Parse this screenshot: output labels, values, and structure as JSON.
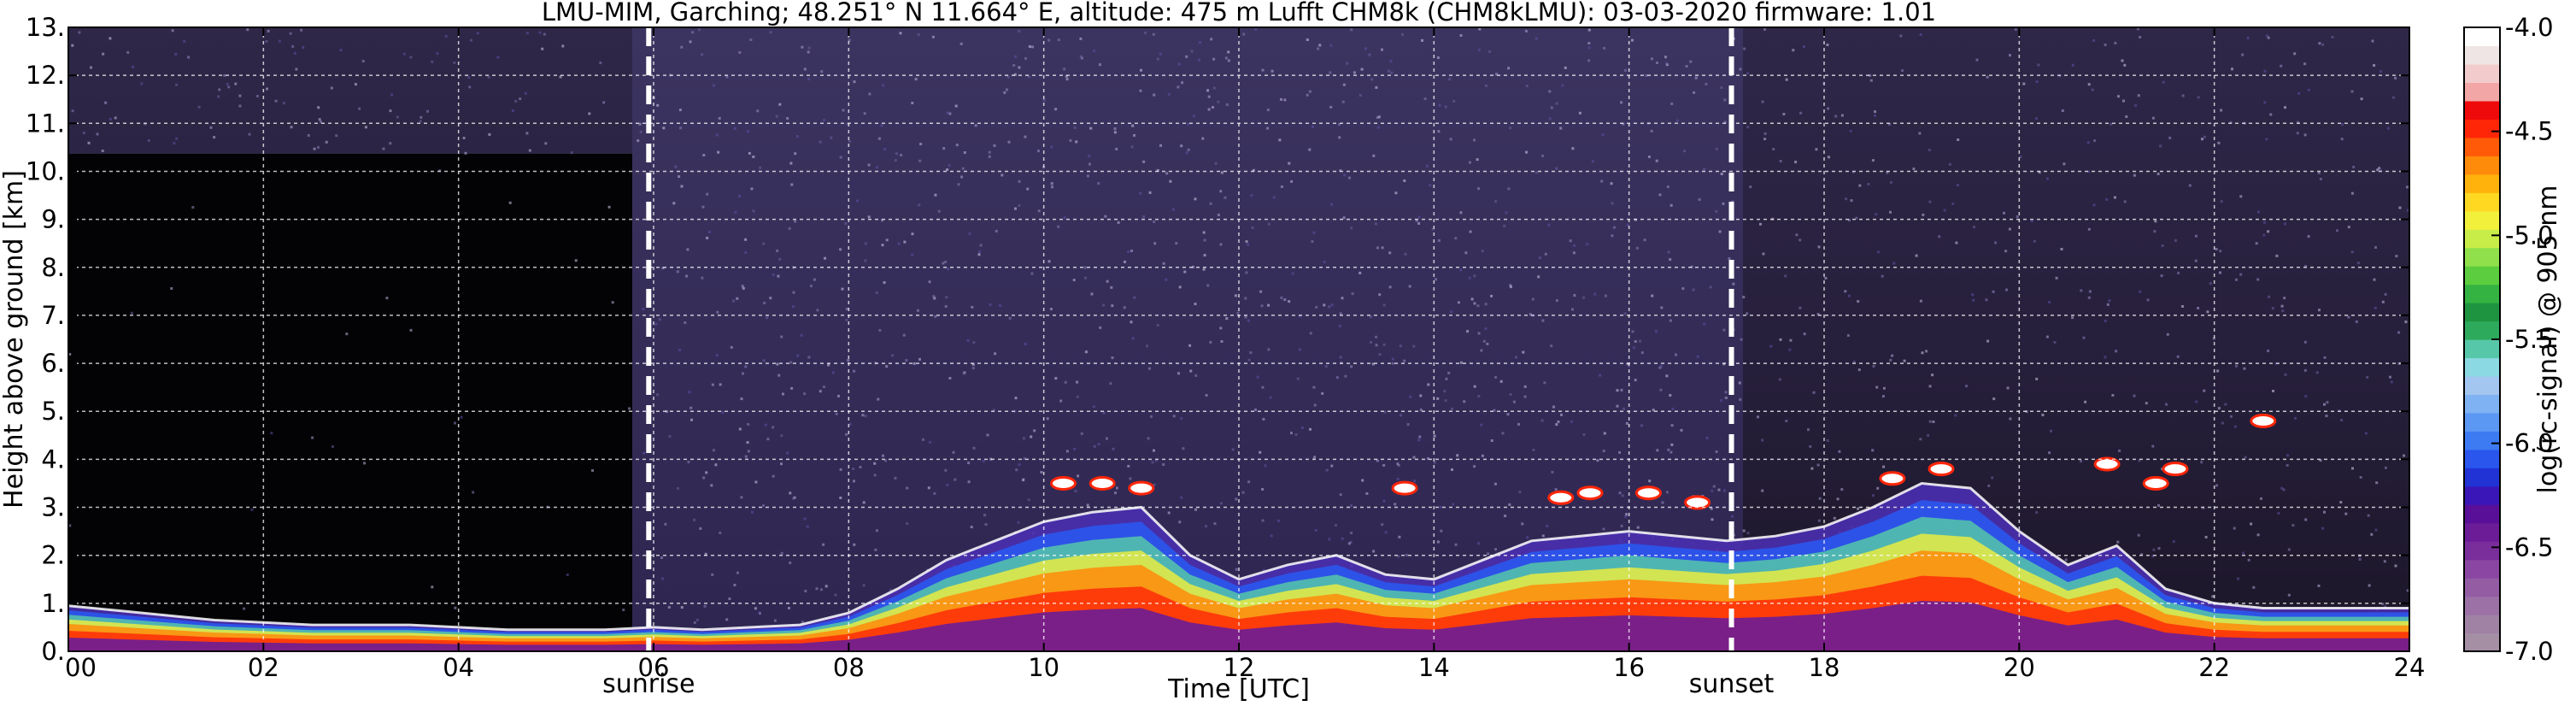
{
  "chart_data": {
    "type": "heatmap",
    "title": "LMU-MIM, Garching; 48.251° N 11.664° E, altitude: 475 m    Lufft CHM8k (CHM8kLMU): 03-03-2020    firmware: 1.01",
    "xlabel": "Time [UTC]",
    "ylabel": "Height above ground [km]",
    "colorbar_label": "log(rc-signal) @ 905 nm",
    "xlim": [
      0,
      24
    ],
    "ylim": [
      0,
      13
    ],
    "clim": [
      -7.0,
      -4.0
    ],
    "grid": true,
    "x_ticks": [
      {
        "value": 0,
        "label": "00"
      },
      {
        "value": 2,
        "label": "02"
      },
      {
        "value": 4,
        "label": "04"
      },
      {
        "value": 6,
        "label": "06"
      },
      {
        "value": 8,
        "label": "08"
      },
      {
        "value": 10,
        "label": "10"
      },
      {
        "value": 12,
        "label": "12"
      },
      {
        "value": 14,
        "label": "14"
      },
      {
        "value": 16,
        "label": "16"
      },
      {
        "value": 18,
        "label": "18"
      },
      {
        "value": 20,
        "label": "20"
      },
      {
        "value": 22,
        "label": "22"
      },
      {
        "value": 24,
        "label": "24"
      }
    ],
    "y_ticks": [
      {
        "value": 0,
        "label": "0."
      },
      {
        "value": 1,
        "label": "1."
      },
      {
        "value": 2,
        "label": "2."
      },
      {
        "value": 3,
        "label": "3."
      },
      {
        "value": 4,
        "label": "4."
      },
      {
        "value": 5,
        "label": "5."
      },
      {
        "value": 6,
        "label": "6."
      },
      {
        "value": 7,
        "label": "7."
      },
      {
        "value": 8,
        "label": "8."
      },
      {
        "value": 9,
        "label": "9."
      },
      {
        "value": 10,
        "label": "10."
      },
      {
        "value": 11,
        "label": "11."
      },
      {
        "value": 12,
        "label": "12."
      },
      {
        "value": 13,
        "label": "13."
      }
    ],
    "colorbar_ticks": [
      {
        "value": -4.0,
        "label": "-4.0"
      },
      {
        "value": -4.5,
        "label": "-4.5"
      },
      {
        "value": -5.0,
        "label": "-5.0"
      },
      {
        "value": -5.5,
        "label": "-5.5"
      },
      {
        "value": -6.0,
        "label": "-6.0"
      },
      {
        "value": -6.5,
        "label": "-6.5"
      },
      {
        "value": -7.0,
        "label": "-7.0"
      }
    ],
    "colorbar_colors": [
      "#a58fa5",
      "#a082a5",
      "#9b71a6",
      "#935ca3",
      "#8a46a2",
      "#7a2e9c",
      "#6b1c96",
      "#5a0f98",
      "#3a16b8",
      "#2233d6",
      "#2a56ee",
      "#3d7bf2",
      "#5b98f3",
      "#7fb2f2",
      "#a3c6f0",
      "#8bd9e2",
      "#56c7a8",
      "#2daa5c",
      "#1f9440",
      "#34b342",
      "#5ccd3e",
      "#8fe04a",
      "#c8ed48",
      "#f2f03a",
      "#ffd822",
      "#ffb20c",
      "#ff8b0a",
      "#ff5a08",
      "#ff2608",
      "#ee0a0a",
      "#f3a6a6",
      "#f2cccc",
      "#efe5e5",
      "#ffffff"
    ],
    "annotations": [
      {
        "x": 5.95,
        "label": "sunrise"
      },
      {
        "x": 17.05,
        "label": "sunset"
      }
    ],
    "series": [
      {
        "name": "mixing-layer signal top",
        "x": [
          0,
          0.5,
          1,
          1.5,
          2,
          2.5,
          3,
          3.5,
          4,
          4.5,
          5,
          5.5,
          6,
          6.5,
          7,
          7.5,
          8,
          8.5,
          9,
          9.5,
          10,
          10.5,
          11,
          11.5,
          12,
          12.5,
          13,
          13.5,
          14,
          14.5,
          15,
          15.5,
          16,
          16.5,
          17,
          17.5,
          18,
          18.5,
          19,
          19.5,
          20,
          20.5,
          21,
          21.5,
          22,
          22.5,
          23,
          23.5,
          24
        ],
        "y": [
          0.95,
          0.85,
          0.75,
          0.65,
          0.6,
          0.55,
          0.55,
          0.55,
          0.5,
          0.45,
          0.45,
          0.45,
          0.5,
          0.45,
          0.5,
          0.55,
          0.8,
          1.3,
          1.9,
          2.3,
          2.7,
          2.9,
          3.0,
          2.0,
          1.5,
          1.8,
          2.0,
          1.6,
          1.5,
          1.9,
          2.3,
          2.4,
          2.5,
          2.4,
          2.3,
          2.4,
          2.6,
          3.0,
          3.5,
          3.4,
          2.5,
          1.8,
          2.2,
          1.3,
          1.0,
          0.9,
          0.9,
          0.9,
          0.9
        ]
      },
      {
        "name": "cloud layers",
        "points": [
          {
            "x": 10.2,
            "y": 3.5
          },
          {
            "x": 10.6,
            "y": 3.5
          },
          {
            "x": 11.0,
            "y": 3.4
          },
          {
            "x": 13.7,
            "y": 3.4
          },
          {
            "x": 15.3,
            "y": 3.2
          },
          {
            "x": 15.6,
            "y": 3.3
          },
          {
            "x": 16.2,
            "y": 3.3
          },
          {
            "x": 16.7,
            "y": 3.1
          },
          {
            "x": 18.7,
            "y": 3.6
          },
          {
            "x": 19.2,
            "y": 3.8
          },
          {
            "x": 20.9,
            "y": 3.9
          },
          {
            "x": 21.4,
            "y": 3.5
          },
          {
            "x": 22.5,
            "y": 4.8
          },
          {
            "x": 21.6,
            "y": 3.8
          }
        ]
      }
    ]
  }
}
